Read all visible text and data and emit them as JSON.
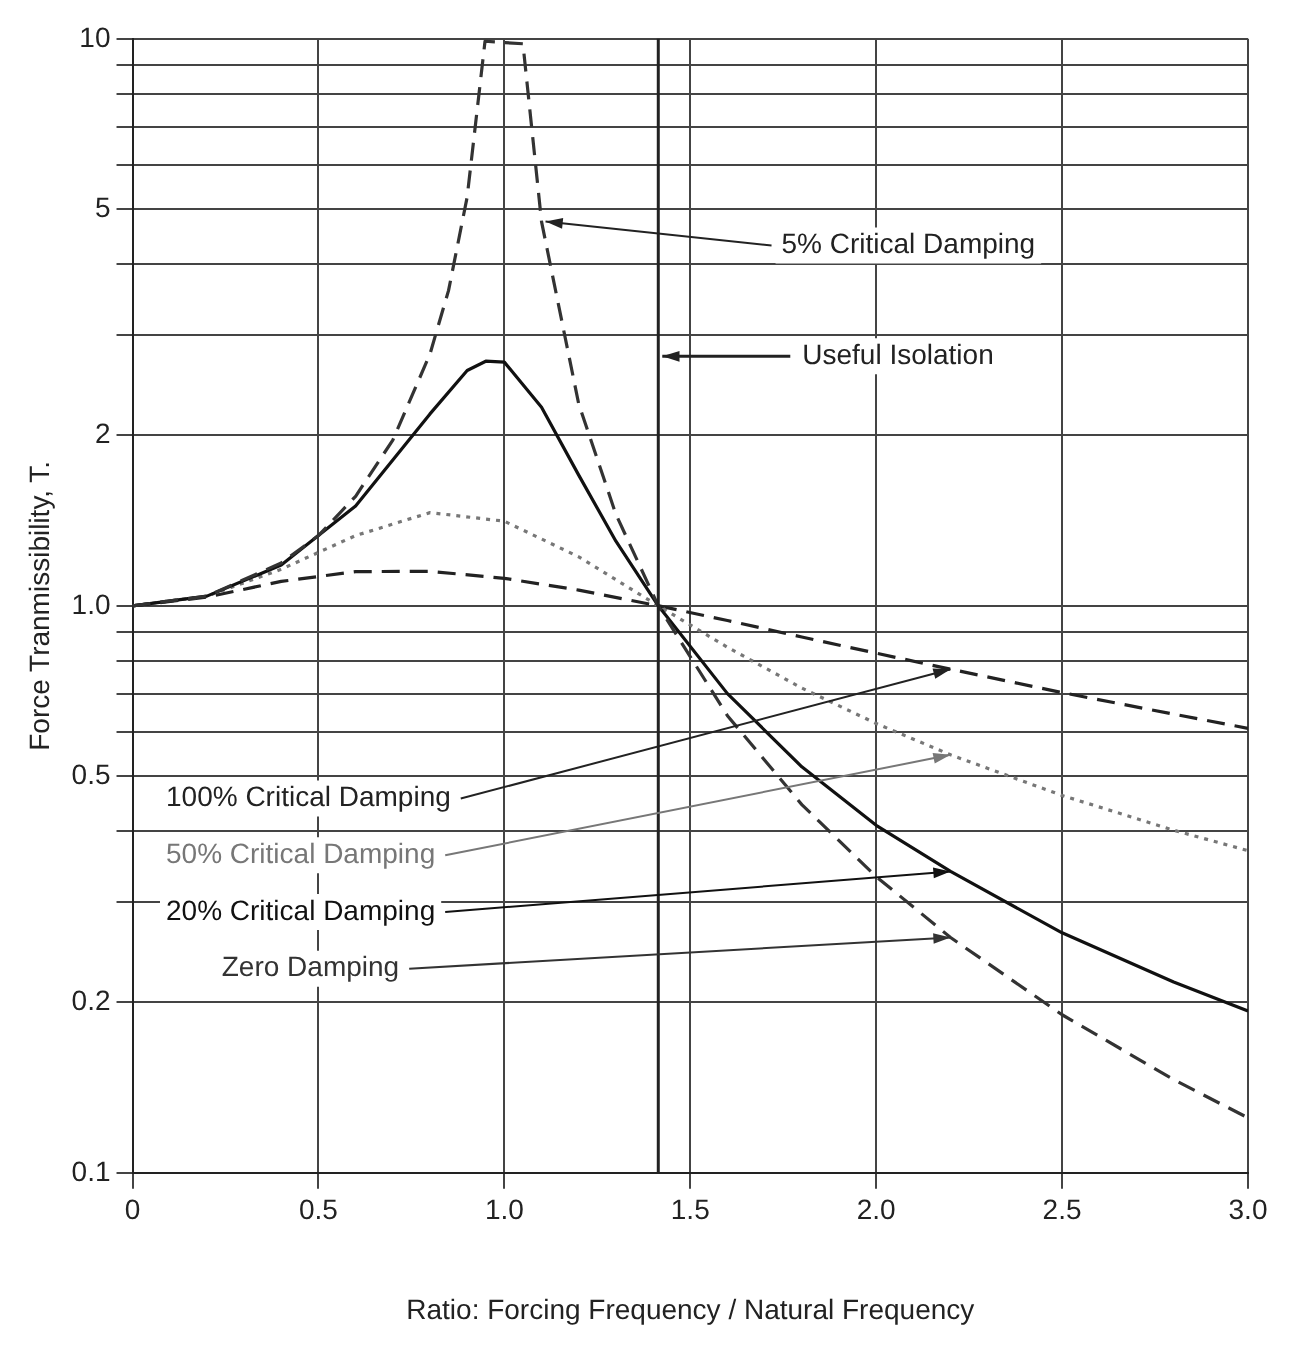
{
  "chart_data": {
    "type": "line",
    "xlabel": "Ratio: Forcing Frequency / Natural Frequency",
    "ylabel": "Force Tranmissibility, T.",
    "log": "y",
    "grid": true,
    "legend": false,
    "marker": "none",
    "xlim": [
      0,
      3
    ],
    "ylim": [
      0.1,
      10
    ],
    "xticks": [
      0,
      0.5,
      {
        "value": 1,
        "label": "1.0"
      },
      1.5,
      {
        "value": 2,
        "label": "2.0"
      },
      2.5,
      {
        "value": 3,
        "label": "3.0"
      }
    ],
    "yticks": [
      0.1,
      0.2,
      {
        "value": 0.3,
        "label": null
      },
      {
        "value": 0.4,
        "label": null
      },
      0.5,
      {
        "value": 0.6,
        "label": null
      },
      {
        "value": 0.7,
        "label": null
      },
      {
        "value": 0.8,
        "label": null
      },
      {
        "value": 0.9,
        "label": null
      },
      {
        "value": 1,
        "label": "1.0"
      },
      2,
      {
        "value": 3,
        "label": null
      },
      {
        "value": 4,
        "label": null
      },
      5,
      {
        "value": 6,
        "label": null
      },
      {
        "value": 7,
        "label": null
      },
      {
        "value": 8,
        "label": null
      },
      {
        "value": 9,
        "label": null
      },
      10
    ],
    "series": [
      {
        "name": "Zero Damping",
        "color": "#333333",
        "line_style": "dashed",
        "x": [
          0,
          0.2,
          0.4,
          0.5,
          0.6,
          0.7,
          0.8,
          0.85,
          0.9,
          0.948,
          1.05,
          1.1,
          1.2,
          1.3,
          1.414,
          1.6,
          1.8,
          2.0,
          2.2,
          2.5,
          2.8,
          3.0
        ],
        "values": [
          1,
          1.04,
          1.19,
          1.33,
          1.56,
          1.96,
          2.78,
          3.6,
          5.26,
          9.9,
          9.8,
          4.76,
          2.27,
          1.45,
          1.0,
          0.64,
          0.446,
          0.333,
          0.26,
          0.19,
          0.146,
          0.125
        ]
      },
      {
        "name": "20% Critical Damping",
        "color": "#111111",
        "line_style": "solid",
        "x": [
          0,
          0.2,
          0.4,
          0.6,
          0.8,
          0.9,
          0.95,
          1.0,
          1.1,
          1.2,
          1.3,
          1.414,
          1.6,
          1.8,
          2.0,
          2.2,
          2.5,
          2.8,
          3.0
        ],
        "values": [
          1,
          1.04,
          1.18,
          1.5,
          2.18,
          2.6,
          2.7,
          2.69,
          2.24,
          1.7,
          1.3,
          1.0,
          0.7,
          0.52,
          0.41,
          0.34,
          0.265,
          0.217,
          0.193
        ]
      },
      {
        "name": "50% Critical Damping",
        "color": "#777777",
        "line_style": "dotted",
        "x": [
          0,
          0.2,
          0.4,
          0.6,
          0.8,
          1.0,
          1.2,
          1.414,
          1.6,
          1.8,
          2.0,
          2.2,
          2.5,
          2.8,
          3.0
        ],
        "values": [
          1,
          1.04,
          1.16,
          1.33,
          1.46,
          1.41,
          1.22,
          1.0,
          0.845,
          0.716,
          0.62,
          0.546,
          0.463,
          0.402,
          0.37
        ]
      },
      {
        "name": "100% Critical Damping",
        "color": "#222222",
        "line_style": "dashed",
        "x": [
          0,
          0.2,
          0.4,
          0.6,
          0.8,
          1.0,
          1.2,
          1.414,
          1.6,
          1.8,
          2.0,
          2.2,
          2.5,
          2.8,
          3.0
        ],
        "values": [
          1,
          1.036,
          1.104,
          1.149,
          1.15,
          1.118,
          1.066,
          1.0,
          0.942,
          0.881,
          0.825,
          0.773,
          0.703,
          0.644,
          0.608
        ]
      }
    ],
    "ref_lines": [
      {
        "axis": "x",
        "value": 1.414,
        "label": "Useful Isolation",
        "color": "#222222"
      }
    ],
    "annotations": [
      {
        "text": "5% Critical Damping",
        "x": 1.1,
        "y": 4.76
      }
    ]
  }
}
